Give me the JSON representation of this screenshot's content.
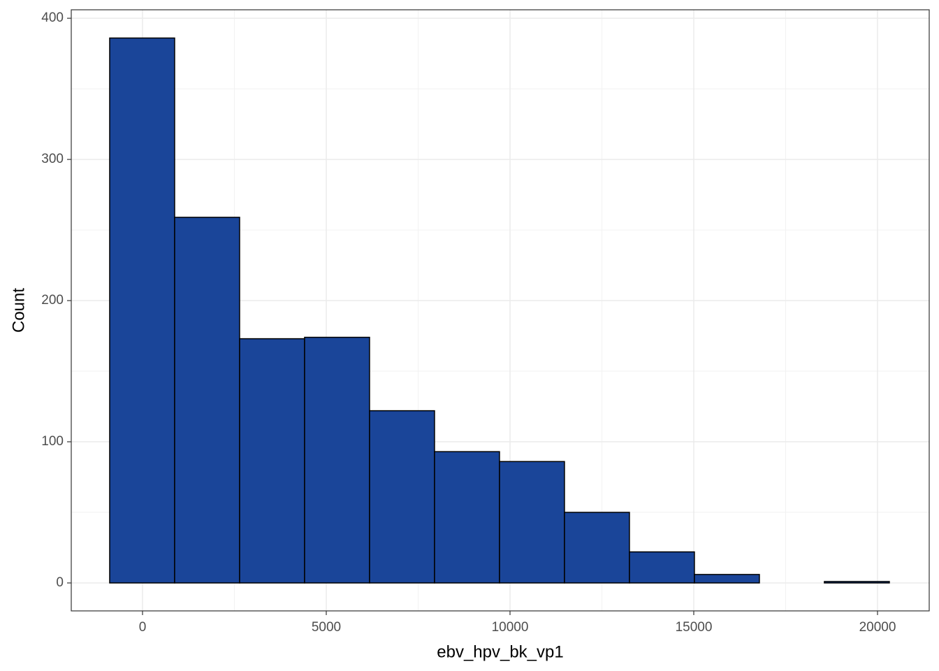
{
  "chart_data": {
    "type": "histogram",
    "xlabel": "ebv_hpv_bk_vp1",
    "ylabel": "Count",
    "bins": [
      -894,
      874,
      2642,
      4410,
      6178,
      7946,
      9714,
      11482,
      13250,
      15018,
      16786,
      18554,
      20322
    ],
    "values": [
      386,
      259,
      173,
      174,
      122,
      93,
      86,
      50,
      22,
      6,
      0,
      1
    ],
    "color": "#1a4599",
    "edgecolor": "#000000",
    "xlim": [
      -1939,
      21407
    ],
    "xticks": [
      0,
      5000,
      10000,
      15000,
      20000
    ],
    "ylim": [
      -19.8,
      406
    ],
    "yticks": [
      0,
      100,
      200,
      300,
      400
    ],
    "grid": true
  }
}
